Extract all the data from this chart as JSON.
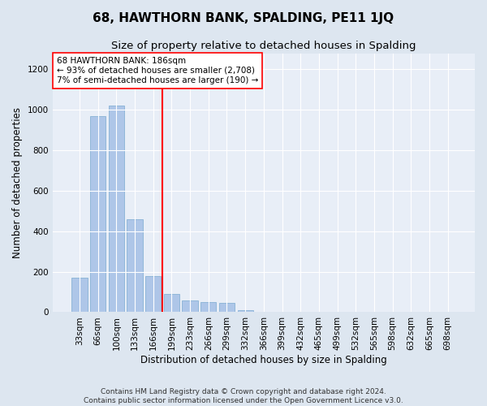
{
  "title": "68, HAWTHORN BANK, SPALDING, PE11 1JQ",
  "subtitle": "Size of property relative to detached houses in Spalding",
  "xlabel": "Distribution of detached houses by size in Spalding",
  "ylabel": "Number of detached properties",
  "categories": [
    "33sqm",
    "66sqm",
    "100sqm",
    "133sqm",
    "166sqm",
    "199sqm",
    "233sqm",
    "266sqm",
    "299sqm",
    "332sqm",
    "366sqm",
    "399sqm",
    "432sqm",
    "465sqm",
    "499sqm",
    "532sqm",
    "565sqm",
    "598sqm",
    "632sqm",
    "665sqm",
    "698sqm"
  ],
  "values": [
    170,
    970,
    1020,
    460,
    180,
    90,
    60,
    50,
    45,
    10,
    0,
    0,
    0,
    0,
    0,
    0,
    0,
    0,
    0,
    0,
    0
  ],
  "bar_color": "#aec6e8",
  "bar_edge_color": "#7aaad0",
  "vline_x": 4.5,
  "vline_color": "red",
  "annotation_text": "68 HAWTHORN BANK: 186sqm\n← 93% of detached houses are smaller (2,708)\n7% of semi-detached houses are larger (190) →",
  "annotation_box_color": "white",
  "annotation_box_edge_color": "red",
  "ylim": [
    0,
    1280
  ],
  "yticks": [
    0,
    200,
    400,
    600,
    800,
    1000,
    1200
  ],
  "footer": "Contains HM Land Registry data © Crown copyright and database right 2024.\nContains public sector information licensed under the Open Government Licence v3.0.",
  "bg_color": "#dde6f0",
  "plot_bg_color": "#e8eef7",
  "title_fontsize": 11,
  "subtitle_fontsize": 9.5,
  "label_fontsize": 8.5,
  "tick_fontsize": 7.5,
  "footer_fontsize": 6.5,
  "annotation_fontsize": 7.5
}
